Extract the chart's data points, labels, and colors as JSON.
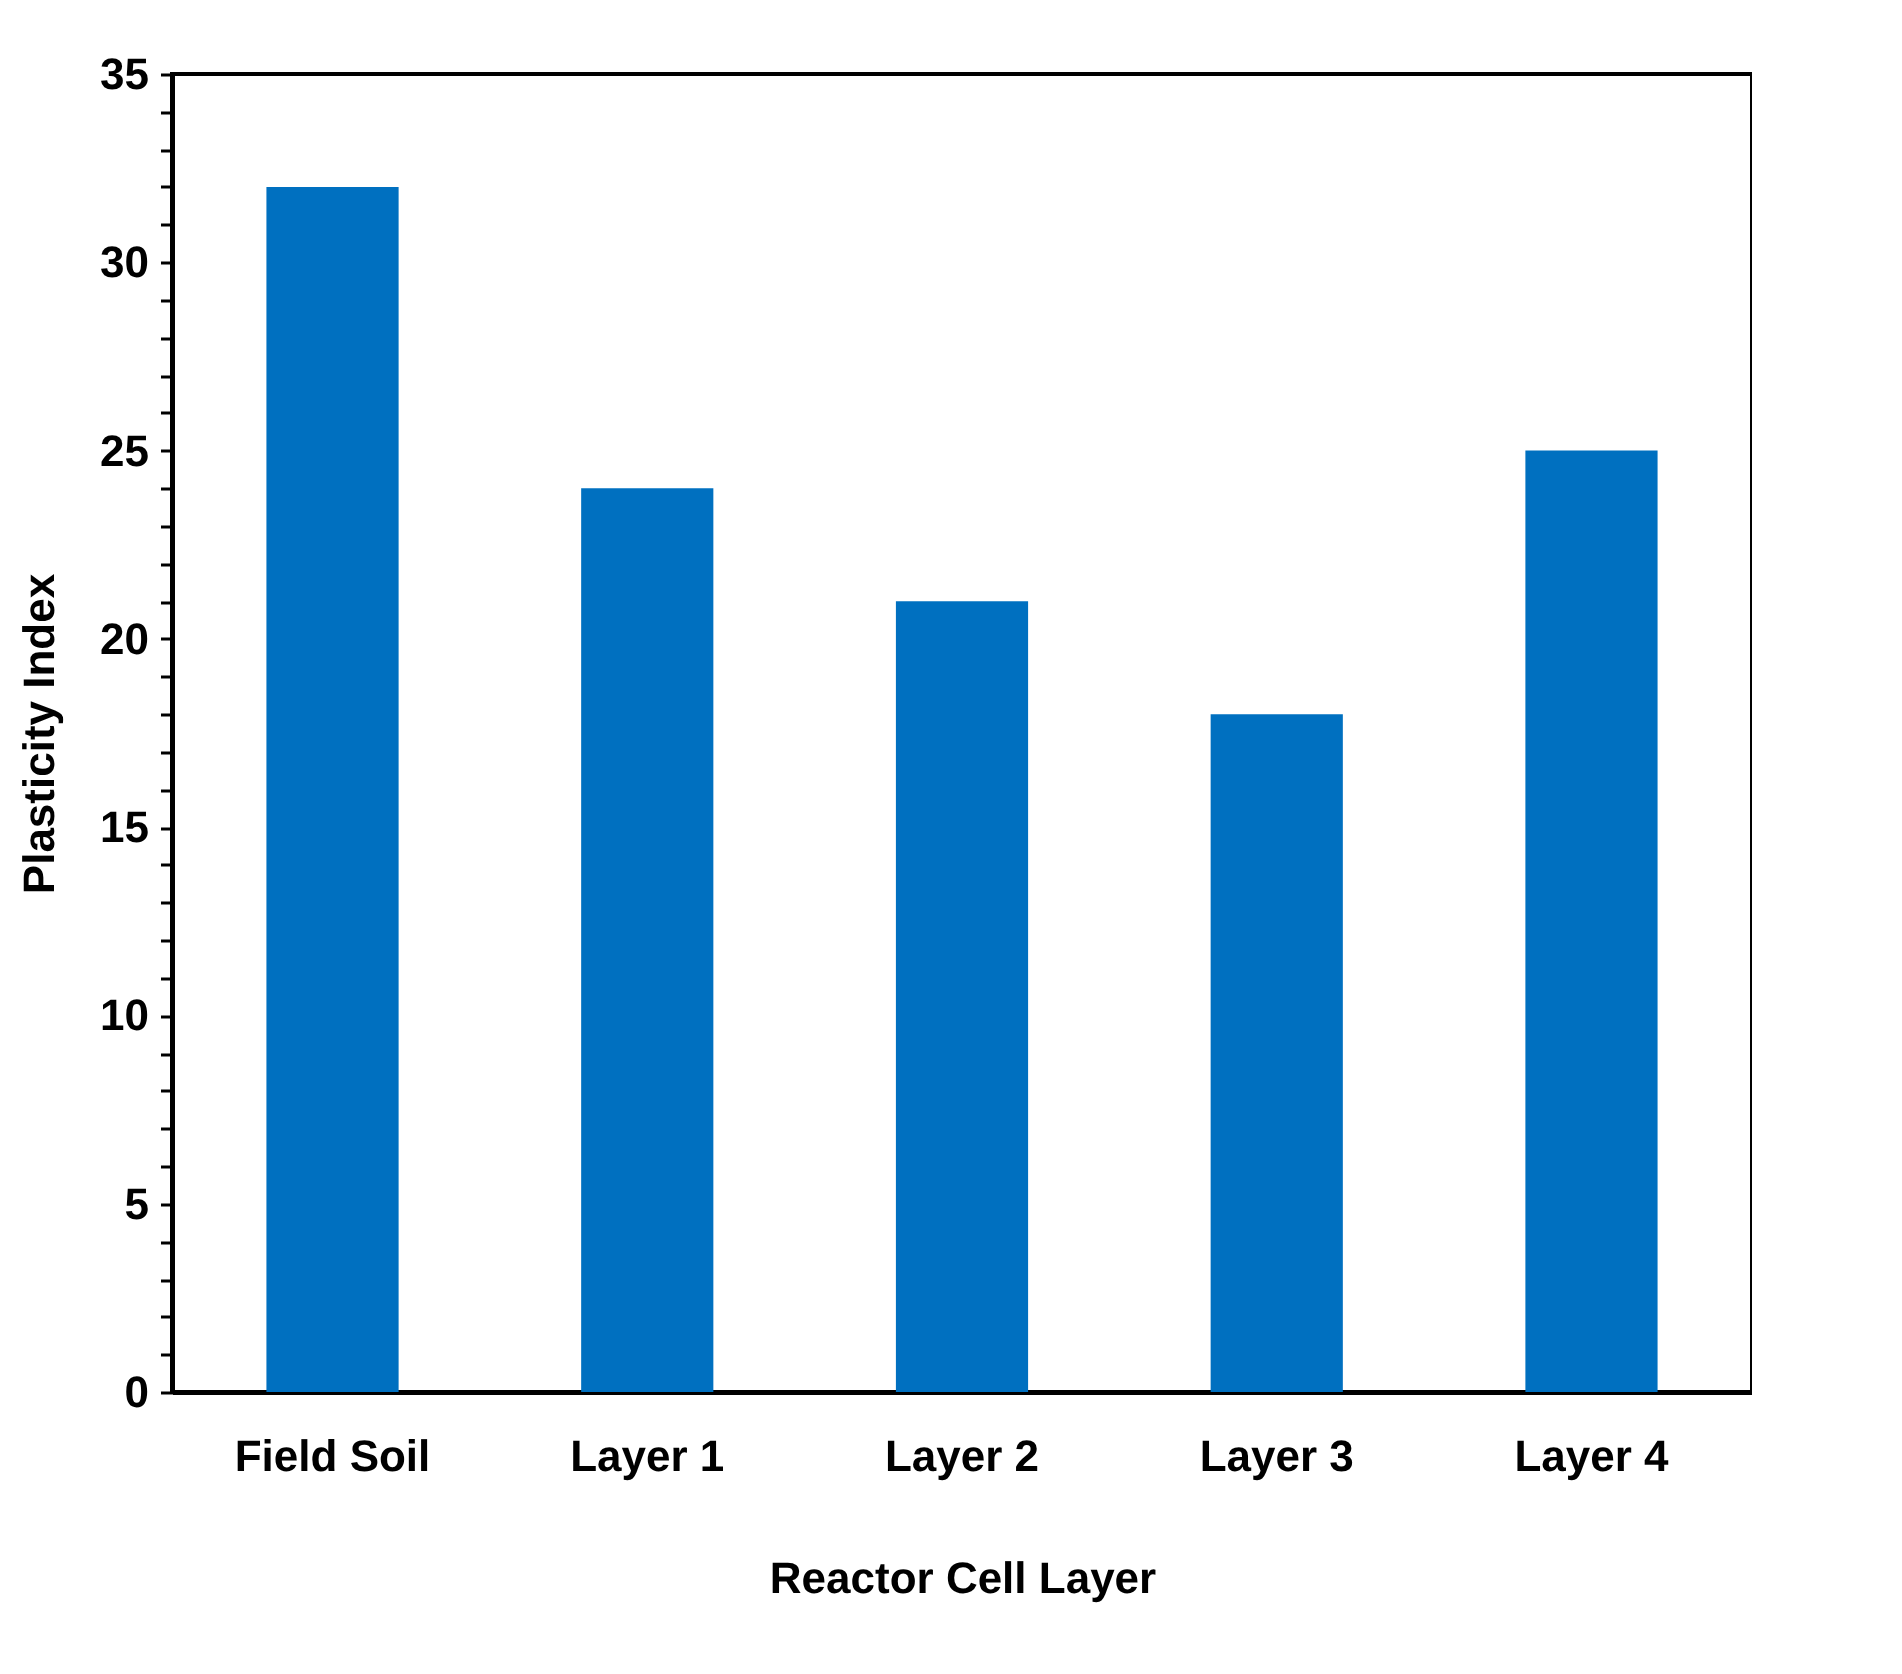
{
  "chart_data": {
    "type": "bar",
    "xlabel": "Reactor Cell Layer",
    "ylabel": "Plasticity Index",
    "categories": [
      "Field Soil",
      "Layer 1",
      "Layer 2",
      "Layer 3",
      "Layer 4"
    ],
    "values": [
      32,
      24,
      21,
      18,
      25
    ],
    "color": "#0070c0",
    "ylim": [
      0,
      35
    ],
    "yticks": [
      0,
      {
        "value": 1,
        "label": null
      },
      {
        "value": 2,
        "label": null
      },
      {
        "value": 3,
        "label": null
      },
      {
        "value": 4,
        "label": null
      },
      5,
      {
        "value": 6,
        "label": null
      },
      {
        "value": 7,
        "label": null
      },
      {
        "value": 8,
        "label": null
      },
      {
        "value": 9,
        "label": null
      },
      10,
      {
        "value": 11,
        "label": null
      },
      {
        "value": 12,
        "label": null
      },
      {
        "value": 13,
        "label": null
      },
      {
        "value": 14,
        "label": null
      },
      15,
      {
        "value": 16,
        "label": null
      },
      {
        "value": 17,
        "label": null
      },
      {
        "value": 18,
        "label": null
      },
      {
        "value": 19,
        "label": null
      },
      20,
      {
        "value": 21,
        "label": null
      },
      {
        "value": 22,
        "label": null
      },
      {
        "value": 23,
        "label": null
      },
      {
        "value": 24,
        "label": null
      },
      25,
      {
        "value": 26,
        "label": null
      },
      {
        "value": 27,
        "label": null
      },
      {
        "value": 28,
        "label": null
      },
      {
        "value": 29,
        "label": null
      },
      30,
      {
        "value": 31,
        "label": null
      },
      {
        "value": 32,
        "label": null
      },
      {
        "value": 33,
        "label": null
      },
      {
        "value": 34,
        "label": null
      },
      35
    ],
    "grid": false
  }
}
